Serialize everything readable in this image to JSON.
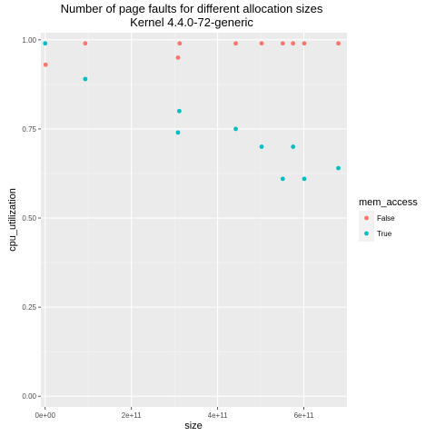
{
  "chart_data": {
    "type": "scatter",
    "title": "Number of page faults for different allocation sizes",
    "subtitle": "Kernel 4.4.0-72-generic",
    "xlabel": "size",
    "ylabel": "cpu_utilization",
    "xlim": [
      -10000000000,
      700000000000
    ],
    "ylim": [
      -0.03,
      1.02
    ],
    "x_ticks": [
      {
        "value": 0,
        "label": "0e+00"
      },
      {
        "value": 200000000000,
        "label": "2e+11"
      },
      {
        "value": 400000000000,
        "label": "4e+11"
      },
      {
        "value": 600000000000,
        "label": "6e+11"
      }
    ],
    "y_ticks": [
      {
        "value": 0.0,
        "label": "0.00"
      },
      {
        "value": 0.25,
        "label": "0.25"
      },
      {
        "value": 0.5,
        "label": "0.50"
      },
      {
        "value": 0.75,
        "label": "0.75"
      },
      {
        "value": 1.0,
        "label": "1.00"
      }
    ],
    "grid": true,
    "legend": {
      "title": "mem_access",
      "position": "right"
    },
    "series": [
      {
        "name": "False",
        "color": "#F8766D",
        "points": [
          {
            "x": 1000000000,
            "y": 0.93
          },
          {
            "x": 93000000000,
            "y": 0.99
          },
          {
            "x": 308000000000,
            "y": 0.95
          },
          {
            "x": 312000000000,
            "y": 0.99
          },
          {
            "x": 442000000000,
            "y": 0.99
          },
          {
            "x": 502000000000,
            "y": 0.99
          },
          {
            "x": 551000000000,
            "y": 0.99
          },
          {
            "x": 575000000000,
            "y": 0.99
          },
          {
            "x": 601000000000,
            "y": 0.99
          },
          {
            "x": 680000000000,
            "y": 0.99
          }
        ]
      },
      {
        "name": "True",
        "color": "#00BFC4",
        "points": [
          {
            "x": 0,
            "y": 0.99
          },
          {
            "x": 93000000000,
            "y": 0.89
          },
          {
            "x": 308000000000,
            "y": 0.74
          },
          {
            "x": 311000000000,
            "y": 0.8
          },
          {
            "x": 442000000000,
            "y": 0.75
          },
          {
            "x": 502000000000,
            "y": 0.7
          },
          {
            "x": 551000000000,
            "y": 0.61
          },
          {
            "x": 575000000000,
            "y": 0.7
          },
          {
            "x": 601000000000,
            "y": 0.61
          },
          {
            "x": 680000000000,
            "y": 0.64
          }
        ]
      }
    ]
  }
}
